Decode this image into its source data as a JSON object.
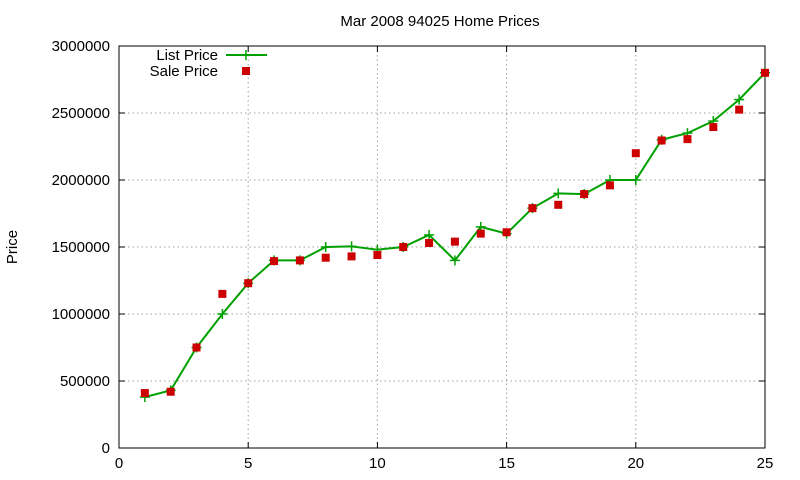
{
  "chart_data": {
    "type": "line",
    "title": "Mar 2008 94025 Home Prices",
    "xlabel": "",
    "ylabel": "Price",
    "xlim": [
      0,
      25
    ],
    "ylim": [
      0,
      3000000
    ],
    "x_ticks": [
      "0",
      "5",
      "10",
      "15",
      "20",
      "25"
    ],
    "y_ticks": [
      "0",
      "500000",
      "1000000",
      "1500000",
      "2000000",
      "2500000",
      "3000000"
    ],
    "grid": true,
    "legend_position": "top-left",
    "series": [
      {
        "name": "List Price",
        "style": "line-with-plus",
        "color": "#00a000",
        "x": [
          1,
          2,
          3,
          4,
          5,
          6,
          7,
          8,
          9,
          10,
          11,
          12,
          13,
          14,
          15,
          16,
          17,
          18,
          19,
          20,
          21,
          22,
          23,
          24,
          25
        ],
        "y": [
          380000,
          430000,
          750000,
          1000000,
          1230000,
          1400000,
          1400000,
          1500000,
          1505000,
          1480000,
          1500000,
          1590000,
          1400000,
          1650000,
          1600000,
          1790000,
          1900000,
          1895000,
          2000000,
          2000000,
          2300000,
          2350000,
          2440000,
          2600000,
          2800000
        ]
      },
      {
        "name": "Sale Price",
        "style": "square-markers",
        "color": "#cc0000",
        "x": [
          1,
          2,
          3,
          4,
          5,
          6,
          7,
          8,
          9,
          10,
          11,
          12,
          13,
          14,
          15,
          16,
          17,
          18,
          19,
          20,
          21,
          22,
          23,
          24,
          25
        ],
        "y": [
          410000,
          420000,
          750000,
          1150000,
          1230000,
          1395000,
          1400000,
          1420000,
          1430000,
          1440000,
          1500000,
          1530000,
          1540000,
          1600000,
          1610000,
          1790000,
          1815000,
          1895000,
          1960000,
          2200000,
          2295000,
          2305000,
          2395000,
          2525000,
          2800000
        ]
      }
    ]
  }
}
